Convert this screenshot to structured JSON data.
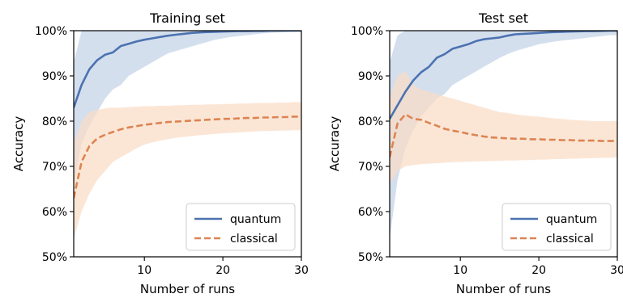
{
  "chart_data": [
    {
      "type": "line",
      "title": "Training set",
      "xlabel": "Number of runs",
      "ylabel": "Accuracy",
      "xlim": [
        1,
        30
      ],
      "ylim": [
        50,
        100
      ],
      "xticks": [
        10,
        20,
        30
      ],
      "yticks": [
        50,
        60,
        70,
        80,
        90,
        100
      ],
      "ytick_labels": [
        "50%",
        "60%",
        "70%",
        "80%",
        "90%",
        "100%"
      ],
      "legend_position": "bottom-right",
      "x": [
        1,
        2,
        3,
        4,
        5,
        6,
        7,
        8,
        9,
        10,
        11,
        12,
        13,
        14,
        15,
        16,
        17,
        18,
        19,
        20,
        21,
        22,
        23,
        24,
        25,
        26,
        27,
        28,
        29,
        30
      ],
      "series": [
        {
          "name": "quantum",
          "style": "solid",
          "color": "#4c72b0",
          "band_color": "#c3d3e8",
          "values": [
            83,
            88,
            91.5,
            93.5,
            94.7,
            95.2,
            96.6,
            97.1,
            97.6,
            98.0,
            98.3,
            98.6,
            98.9,
            99.1,
            99.3,
            99.5,
            99.6,
            99.7,
            99.75,
            99.8,
            99.85,
            99.9,
            99.9,
            99.95,
            99.95,
            100,
            100,
            100,
            100,
            100
          ],
          "lower": [
            66,
            75,
            79,
            82,
            85,
            87,
            88,
            90,
            91,
            92,
            93,
            94,
            95,
            95.5,
            96,
            96.5,
            97,
            97.5,
            98,
            98.3,
            98.6,
            98.8,
            99,
            99.2,
            99.4,
            99.5,
            99.6,
            99.7,
            99.8,
            100
          ],
          "upper": [
            93,
            100,
            100,
            100,
            100,
            100,
            100,
            100,
            100,
            100,
            100,
            100,
            100,
            100,
            100,
            100,
            100,
            100,
            100,
            100,
            100,
            100,
            100,
            100,
            100,
            100,
            100,
            100,
            100,
            100
          ]
        },
        {
          "name": "classical",
          "style": "dashed",
          "color": "#dd8452",
          "band_color": "#f9dcc6",
          "values": [
            63,
            71,
            74.5,
            76.2,
            77.0,
            77.6,
            78.2,
            78.6,
            78.9,
            79.2,
            79.4,
            79.6,
            79.8,
            79.9,
            80.0,
            80.1,
            80.2,
            80.3,
            80.4,
            80.5,
            80.5,
            80.6,
            80.7,
            80.7,
            80.8,
            80.8,
            80.9,
            80.9,
            81.0,
            81.0
          ],
          "lower": [
            54,
            60,
            64,
            67,
            69,
            71,
            72,
            73,
            74,
            74.8,
            75.3,
            75.7,
            76,
            76.3,
            76.5,
            76.7,
            76.9,
            77,
            77.2,
            77.3,
            77.4,
            77.5,
            77.6,
            77.7,
            77.8,
            77.8,
            77.9,
            77.9,
            78,
            78
          ],
          "upper": [
            75,
            80,
            82,
            82.5,
            82.8,
            83,
            83,
            83.1,
            83.2,
            83.3,
            83.3,
            83.4,
            83.4,
            83.5,
            83.5,
            83.6,
            83.6,
            83.7,
            83.7,
            83.8,
            83.8,
            83.9,
            83.9,
            84,
            84,
            84,
            84.1,
            84.1,
            84.2,
            84.2
          ]
        }
      ]
    },
    {
      "type": "line",
      "title": "Test set",
      "xlabel": "Number of runs",
      "ylabel": "Accuracy",
      "xlim": [
        1,
        30
      ],
      "ylim": [
        50,
        100
      ],
      "xticks": [
        10,
        20,
        30
      ],
      "yticks": [
        50,
        60,
        70,
        80,
        90,
        100
      ],
      "ytick_labels": [
        "50%",
        "60%",
        "70%",
        "80%",
        "90%",
        "100%"
      ],
      "legend_position": "bottom-right",
      "x": [
        1,
        2,
        3,
        4,
        5,
        6,
        7,
        8,
        9,
        10,
        11,
        12,
        13,
        14,
        15,
        16,
        17,
        18,
        19,
        20,
        21,
        22,
        23,
        24,
        25,
        26,
        27,
        28,
        29,
        30
      ],
      "series": [
        {
          "name": "quantum",
          "style": "solid",
          "color": "#4c72b0",
          "band_color": "#c3d3e8",
          "values": [
            80.5,
            83.5,
            86.5,
            89.0,
            90.8,
            92.0,
            94.0,
            94.8,
            96.0,
            96.5,
            97.0,
            97.7,
            98.1,
            98.3,
            98.5,
            98.9,
            99.2,
            99.3,
            99.4,
            99.5,
            99.6,
            99.7,
            99.75,
            99.8,
            99.85,
            99.9,
            99.9,
            99.95,
            100,
            100
          ],
          "lower": [
            54,
            67,
            74,
            78,
            81,
            83,
            85,
            86,
            88,
            89,
            90,
            91,
            92,
            93,
            94,
            94.8,
            95.5,
            96,
            96.5,
            97,
            97.3,
            97.6,
            97.8,
            98,
            98.2,
            98.4,
            98.6,
            98.8,
            99,
            99
          ],
          "upper": [
            93,
            99,
            100,
            100,
            100,
            100,
            100,
            100,
            100,
            100,
            100,
            100,
            100,
            100,
            100,
            100,
            100,
            100,
            100,
            100,
            100,
            100,
            100,
            100,
            100,
            100,
            100,
            100,
            100,
            100
          ]
        },
        {
          "name": "classical",
          "style": "dashed",
          "color": "#dd8452",
          "band_color": "#f9dcc6",
          "values": [
            72,
            79.5,
            81.5,
            80.5,
            80.3,
            79.6,
            79.0,
            78.3,
            77.9,
            77.6,
            77.2,
            76.9,
            76.6,
            76.4,
            76.3,
            76.2,
            76.1,
            76.1,
            76.0,
            76.0,
            75.9,
            75.9,
            75.8,
            75.8,
            75.7,
            75.7,
            75.7,
            75.6,
            75.6,
            75.6
          ],
          "lower": [
            66,
            69,
            70,
            70.3,
            70.5,
            70.6,
            70.7,
            70.8,
            70.9,
            71,
            71,
            71.1,
            71.1,
            71.2,
            71.2,
            71.3,
            71.3,
            71.4,
            71.4,
            71.5,
            71.5,
            71.6,
            71.6,
            71.7,
            71.7,
            71.8,
            71.8,
            71.9,
            71.9,
            72
          ],
          "upper": [
            85,
            90,
            91,
            88,
            87,
            86.5,
            86,
            85.5,
            85,
            84.5,
            84,
            83.5,
            83,
            82.5,
            82,
            81.8,
            81.5,
            81.3,
            81.1,
            81,
            80.8,
            80.6,
            80.5,
            80.3,
            80.2,
            80.1,
            80,
            80,
            80,
            80
          ]
        }
      ]
    }
  ]
}
